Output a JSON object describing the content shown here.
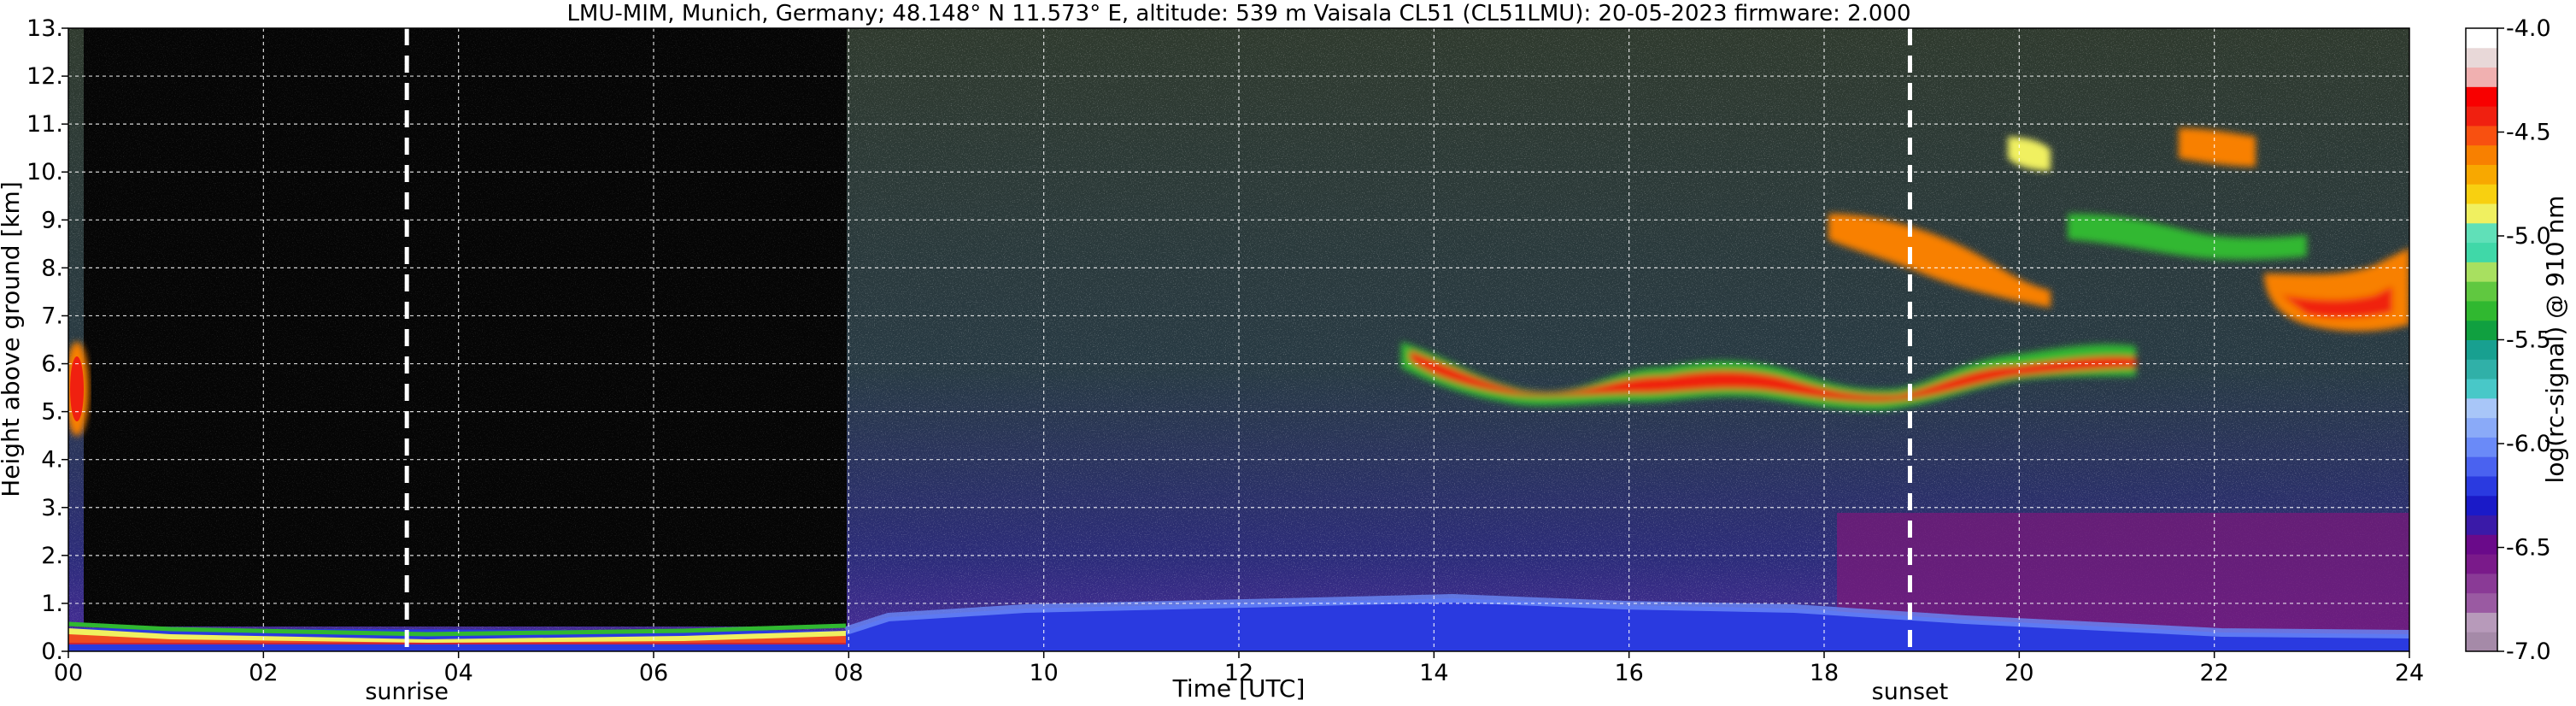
{
  "chart_data": {
    "type": "heatmap",
    "title": "LMU-MIM, Munich, Germany; 48.148° N 11.573° E, altitude: 539 m    Vaisala CL51 (CL51LMU): 20-05-2023    firmware: 2.000",
    "xlabel": "Time [UTC]",
    "ylabel": "Height above ground [km]",
    "xlim": [
      0,
      24
    ],
    "ylim": [
      0,
      13
    ],
    "x_ticks": [
      {
        "value": 0,
        "label": "00"
      },
      {
        "value": 2,
        "label": "02"
      },
      {
        "value": 4,
        "label": "04"
      },
      {
        "value": 6,
        "label": "06"
      },
      {
        "value": 8,
        "label": "08"
      },
      {
        "value": 10,
        "label": "10"
      },
      {
        "value": 12,
        "label": "12"
      },
      {
        "value": 14,
        "label": "14"
      },
      {
        "value": 16,
        "label": "16"
      },
      {
        "value": 18,
        "label": "18"
      },
      {
        "value": 20,
        "label": "20"
      },
      {
        "value": 22,
        "label": "22"
      },
      {
        "value": 24,
        "label": "24"
      }
    ],
    "y_ticks": [
      {
        "value": 0,
        "label": "0."
      },
      {
        "value": 1,
        "label": "1."
      },
      {
        "value": 2,
        "label": "2."
      },
      {
        "value": 3,
        "label": "3."
      },
      {
        "value": 4,
        "label": "4."
      },
      {
        "value": 5,
        "label": "5."
      },
      {
        "value": 6,
        "label": "6."
      },
      {
        "value": 7,
        "label": "7."
      },
      {
        "value": 8,
        "label": "8."
      },
      {
        "value": 9,
        "label": "9."
      },
      {
        "value": 10,
        "label": "10."
      },
      {
        "value": 11,
        "label": "11."
      },
      {
        "value": 12,
        "label": "12."
      },
      {
        "value": 13,
        "label": "13."
      }
    ],
    "grid": true,
    "events": [
      {
        "label": "sunrise",
        "x": 3.47
      },
      {
        "label": "sunset",
        "x": 18.88
      }
    ],
    "colorbar": {
      "label": "log(rc-signal) @ 910 nm",
      "range": [
        -7.0,
        -4.0
      ],
      "ticks": [
        {
          "value": -4.0,
          "label": "-4.0"
        },
        {
          "value": -4.5,
          "label": "-4.5"
        },
        {
          "value": -5.0,
          "label": "-5.0"
        },
        {
          "value": -5.5,
          "label": "-5.5"
        },
        {
          "value": -6.0,
          "label": "-6.0"
        },
        {
          "value": -6.5,
          "label": "-6.5"
        },
        {
          "value": -7.0,
          "label": "-7.0"
        }
      ],
      "colors": [
        "#a58aa8",
        "#b79aba",
        "#9a5aa2",
        "#8a3a96",
        "#7a1a8a",
        "#6a0a8a",
        "#3a1aa8",
        "#1a1ac8",
        "#2a3ae0",
        "#4a62f0",
        "#6a8af8",
        "#8aaaf8",
        "#a8c6f8",
        "#48c8c8",
        "#30b0a8",
        "#18a090",
        "#10a040",
        "#30b830",
        "#60c840",
        "#a8e060",
        "#40d8a8",
        "#60e0b8",
        "#f0f060",
        "#f8d010",
        "#f8a800",
        "#f88000",
        "#f85010",
        "#f02010",
        "#f80000",
        "#f0b0b0",
        "#e8d8d8",
        "#ffffff"
      ]
    },
    "features": [
      {
        "name": "surface layer",
        "x_range": [
          0,
          24
        ],
        "height_km": [
          0,
          0.8
        ],
        "signal": "strong (blue)"
      },
      {
        "name": "weak signal (daylight noise)",
        "x_range": [
          0.2,
          8.0
        ],
        "height_km": [
          0.4,
          13
        ]
      },
      {
        "name": "mid-level cloud layer",
        "x_range": [
          13.6,
          19.2
        ],
        "height_km": [
          5.0,
          6.5
        ]
      },
      {
        "name": "upper cloud layer",
        "x_range": [
          18.0,
          24.0
        ],
        "height_km": [
          6.5,
          10.6
        ]
      },
      {
        "name": "residual/boundary layer",
        "x_range": [
          18.5,
          24.0
        ],
        "height_km": [
          0.5,
          2.0
        ],
        "signal": "purple"
      }
    ]
  }
}
